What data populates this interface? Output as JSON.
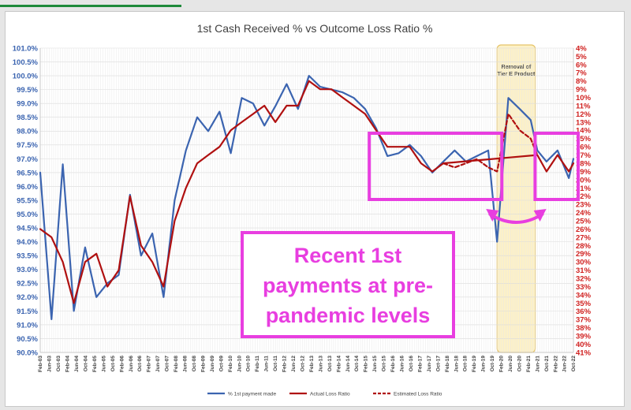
{
  "chart_data": {
    "type": "line",
    "title": "1st Cash Received % vs Outcome Loss Ratio %",
    "left_axis": {
      "ylim": [
        90.0,
        101.0
      ],
      "ticks": [
        "101.0%",
        "100.5%",
        "100.0%",
        "99.5%",
        "99.0%",
        "98.5%",
        "98.0%",
        "97.5%",
        "97.0%",
        "96.5%",
        "96.0%",
        "95.5%",
        "95.0%",
        "94.5%",
        "94.0%",
        "93.5%",
        "93.0%",
        "92.5%",
        "92.0%",
        "91.5%",
        "91.0%",
        "90.5%",
        "90.0%"
      ]
    },
    "right_axis": {
      "ylim": [
        4,
        41
      ],
      "inverted": true,
      "ticks": [
        "4%",
        "5%",
        "6%",
        "7%",
        "8%",
        "9%",
        "10%",
        "11%",
        "12%",
        "13%",
        "14%",
        "15%",
        "16%",
        "17%",
        "18%",
        "19%",
        "20%",
        "21%",
        "22%",
        "23%",
        "24%",
        "25%",
        "26%",
        "27%",
        "28%",
        "29%",
        "30%",
        "31%",
        "32%",
        "33%",
        "34%",
        "35%",
        "36%",
        "37%",
        "38%",
        "39%",
        "40%",
        "41%"
      ]
    },
    "x_ticks": [
      "Feb-03",
      "Jun-03",
      "Oct-03",
      "Feb-04",
      "Jun-04",
      "Oct-04",
      "Feb-05",
      "Jun-05",
      "Oct-05",
      "Feb-06",
      "Jun-06",
      "Oct-06",
      "Feb-07",
      "Jun-07",
      "Oct-07",
      "Feb-08",
      "Jun-08",
      "Oct-08",
      "Feb-09",
      "Jun-09",
      "Oct-09",
      "Feb-10",
      "Jun-10",
      "Oct-10",
      "Feb-11",
      "Jun-11",
      "Oct-11",
      "Feb-12",
      "Jun-12",
      "Oct-12",
      "Feb-13",
      "Jun-13",
      "Oct-13",
      "Feb-14",
      "Jun-14",
      "Oct-14",
      "Feb-15",
      "Jun-15",
      "Oct-15",
      "Feb-16",
      "Jun-16",
      "Oct-16",
      "Feb-17",
      "Jun-17",
      "Oct-17",
      "Feb-18",
      "Jun-18",
      "Oct-18",
      "Feb-19",
      "Jun-19",
      "Oct-19",
      "Feb-20",
      "Jun-20",
      "Oct-20",
      "Feb-21",
      "Jun-21",
      "Oct-21",
      "Feb-22",
      "Jun-22",
      "Oct-22"
    ],
    "grid": true,
    "legend_position": "bottom",
    "series": [
      {
        "name": "% 1st payment made",
        "axis": "left",
        "color": "#3b64b0",
        "dash": "solid",
        "x": [
          2003.08,
          2003.5,
          2003.92,
          2004.33,
          2004.75,
          2005.17,
          2005.58,
          2006.0,
          2006.42,
          2006.83,
          2007.25,
          2007.67,
          2008.08,
          2008.5,
          2008.92,
          2009.33,
          2009.75,
          2010.17,
          2010.58,
          2011.0,
          2011.42,
          2011.83,
          2012.25,
          2012.67,
          2013.08,
          2013.5,
          2013.92,
          2014.33,
          2014.75,
          2015.17,
          2015.58,
          2016.0,
          2016.42,
          2016.83,
          2017.25,
          2017.67,
          2018.08,
          2018.5,
          2018.92,
          2019.33,
          2019.75,
          2020.08,
          2020.5,
          2020.92,
          2021.33,
          2021.58,
          2021.92,
          2022.33,
          2022.75,
          2022.92
        ],
        "y": [
          96.5,
          91.2,
          96.8,
          91.5,
          93.8,
          92.0,
          92.5,
          92.8,
          95.7,
          93.5,
          94.3,
          92.0,
          95.5,
          97.3,
          98.5,
          98.0,
          98.7,
          97.2,
          99.2,
          99.0,
          98.2,
          98.9,
          99.7,
          98.8,
          100.0,
          99.6,
          99.5,
          99.4,
          99.2,
          98.8,
          98.1,
          97.1,
          97.2,
          97.5,
          97.1,
          96.5,
          96.9,
          97.3,
          96.9,
          97.1,
          97.3,
          94.0,
          99.2,
          98.8,
          98.4,
          97.3,
          96.9,
          97.3,
          96.3,
          97.0
        ]
      },
      {
        "name": "Actual Loss Ratio",
        "axis": "right",
        "color": "#b01010",
        "dash": "solid",
        "x": [
          2003.08,
          2003.5,
          2003.92,
          2004.33,
          2004.75,
          2005.17,
          2005.58,
          2006.0,
          2006.42,
          2006.83,
          2007.25,
          2007.67,
          2008.08,
          2008.5,
          2008.92,
          2009.33,
          2009.75,
          2010.17,
          2010.58,
          2011.0,
          2011.42,
          2011.83,
          2012.25,
          2012.67,
          2013.08,
          2013.5,
          2013.92,
          2014.33,
          2014.75,
          2015.17,
          2015.58,
          2016.0,
          2016.42,
          2016.83,
          2017.25,
          2017.67,
          2018.08,
          2021.58,
          2021.92,
          2022.33,
          2022.75,
          2022.92
        ],
        "y": [
          26,
          27,
          30,
          35,
          30,
          29,
          33,
          31,
          22,
          28,
          30,
          33,
          25,
          21,
          18,
          17,
          16,
          14,
          13,
          12,
          11,
          13,
          11,
          11,
          8,
          9,
          9,
          10,
          11,
          12,
          14,
          16,
          16,
          16,
          18,
          19,
          18,
          17,
          19,
          17,
          19,
          18
        ]
      },
      {
        "name": "Estimated Loss Ratio",
        "axis": "right",
        "color": "#b01010",
        "dash": "dashed",
        "x": [
          2018.08,
          2018.5,
          2018.92,
          2019.33,
          2019.75,
          2020.08,
          2020.5,
          2020.92,
          2021.33,
          2021.58
        ],
        "y": [
          18,
          18.5,
          18,
          17.5,
          18.5,
          19,
          12,
          14,
          15,
          17
        ]
      }
    ],
    "annotations": [
      {
        "text_lines": [
          "Removal of",
          "Tier E Product"
        ],
        "type": "shaded-region",
        "x_start": 2020.08,
        "x_end": 2021.5
      },
      {
        "type": "highlight-box",
        "x_start": 2015.5,
        "x_end": 2020.08
      },
      {
        "type": "highlight-box",
        "x_start": 2021.67,
        "x_end": 2022.92
      },
      {
        "type": "double-arrow"
      },
      {
        "text_lines": [
          "Recent 1st",
          "payments at pre-",
          "pandemic levels"
        ],
        "type": "callout-box"
      }
    ]
  },
  "colors": {
    "left_axis": "#3b64b0",
    "right_axis": "#d0201f",
    "highlight": "#e83ee0",
    "shade_fill": "#fdf1c7",
    "shade_border": "#e6c46a"
  }
}
